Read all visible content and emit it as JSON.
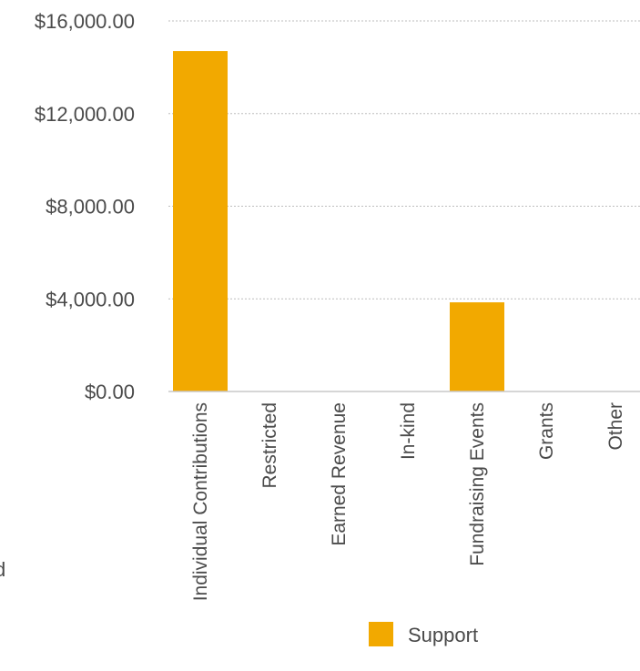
{
  "chart_data": {
    "type": "bar",
    "categories": [
      "Individual Contributions",
      "Restricted",
      "Earned Revenue",
      "In-kind",
      "Fundraising Events",
      "Grants",
      "Other"
    ],
    "series": [
      {
        "name": "Support",
        "values": [
          14700,
          0,
          0,
          0,
          3850,
          0,
          0
        ],
        "color": "#f2a900"
      }
    ],
    "y_ticks": [
      "$0.00",
      "$4,000.00",
      "$8,000.00",
      "$12,000.00",
      "$16,000.00"
    ],
    "y_tick_values": [
      0,
      4000,
      8000,
      12000,
      16000
    ],
    "ylim": [
      0,
      16000
    ],
    "grid": true,
    "grid_color": "#bdbdbd",
    "axis_color": "#c8c8c8",
    "legend_position": "bottom",
    "clipped_left_text": "d"
  }
}
